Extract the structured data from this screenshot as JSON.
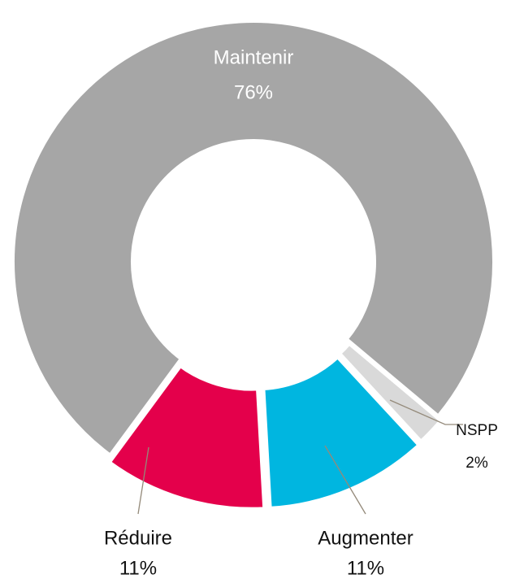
{
  "chart_data": {
    "type": "donut",
    "categories": [
      "Maintenir",
      "Réduire",
      "Augmenter",
      "NSPP"
    ],
    "values": [
      76,
      11,
      11,
      2
    ],
    "value_labels": [
      "76%",
      "11%",
      "11%",
      "2%"
    ],
    "colors": [
      "#a6a6a6",
      "#e4004b",
      "#00b6e0",
      "#d9d9d9"
    ]
  }
}
